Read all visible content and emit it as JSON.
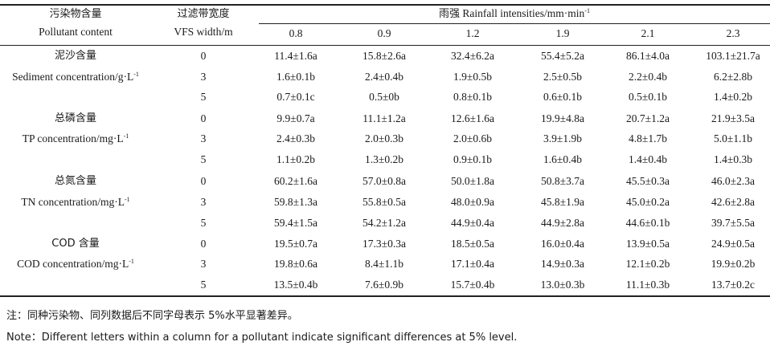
{
  "header": {
    "pollutant_zh": "污染物含量",
    "pollutant_en": "Pollutant content",
    "vfs_zh": "过滤带宽度",
    "vfs_en": "VFS width/m",
    "rain_zh": "雨强",
    "rain_en": "Rainfall intensities/mm·min",
    "rain_sup": "-1",
    "intensities": [
      "0.8",
      "0.9",
      "1.2",
      "1.9",
      "2.1",
      "2.3"
    ]
  },
  "groups": [
    {
      "label_zh": "泥沙含量",
      "label_en": "Sediment concentration/g·L",
      "label_sup": "-1",
      "rows": [
        {
          "width": "0",
          "values": [
            "11.4±1.6a",
            "15.8±2.6a",
            "32.4±6.2a",
            "55.4±5.2a",
            "86.1±4.0a",
            "103.1±21.7a"
          ]
        },
        {
          "width": "3",
          "values": [
            "1.6±0.1b",
            "2.4±0.4b",
            "1.9±0.5b",
            "2.5±0.5b",
            "2.2±0.4b",
            "6.2±2.8b"
          ]
        },
        {
          "width": "5",
          "values": [
            "0.7±0.1c",
            "0.5±0b",
            "0.8±0.1b",
            "0.6±0.1b",
            "0.5±0.1b",
            "1.4±0.2b"
          ]
        }
      ]
    },
    {
      "label_zh": "总磷含量",
      "label_en": "TP concentration/mg·L",
      "label_sup": "-1",
      "rows": [
        {
          "width": "0",
          "values": [
            "9.9±0.7a",
            "11.1±1.2a",
            "12.6±1.6a",
            "19.9±4.8a",
            "20.7±1.2a",
            "21.9±3.5a"
          ]
        },
        {
          "width": "3",
          "values": [
            "2.4±0.3b",
            "2.0±0.3b",
            "2.0±0.6b",
            "3.9±1.9b",
            "4.8±1.7b",
            "5.0±1.1b"
          ]
        },
        {
          "width": "5",
          "values": [
            "1.1±0.2b",
            "1.3±0.2b",
            "0.9±0.1b",
            "1.6±0.4b",
            "1.4±0.4b",
            "1.4±0.3b"
          ]
        }
      ]
    },
    {
      "label_zh": "总氮含量",
      "label_en": "TN concentration/mg·L",
      "label_sup": "-1",
      "rows": [
        {
          "width": "0",
          "values": [
            "60.2±1.6a",
            "57.0±0.8a",
            "50.0±1.8a",
            "50.8±3.7a",
            "45.5±0.3a",
            "46.0±2.3a"
          ]
        },
        {
          "width": "3",
          "values": [
            "59.8±1.3a",
            "55.8±0.5a",
            "48.0±0.9a",
            "45.8±1.9a",
            "45.0±0.2a",
            "42.6±2.8a"
          ]
        },
        {
          "width": "5",
          "values": [
            "59.4±1.5a",
            "54.2±1.2a",
            "44.9±0.4a",
            "44.9±2.8a",
            "44.6±0.1b",
            "39.7±5.5a"
          ]
        }
      ]
    },
    {
      "label_zh": "COD 含量",
      "label_en": "COD concentration/mg·L",
      "label_sup": "-1",
      "rows": [
        {
          "width": "0",
          "values": [
            "19.5±0.7a",
            "17.3±0.3a",
            "18.5±0.5a",
            "16.0±0.4a",
            "13.9±0.5a",
            "24.9±0.5a"
          ]
        },
        {
          "width": "3",
          "values": [
            "19.8±0.6a",
            "8.4±1.1b",
            "17.1±0.4a",
            "14.9±0.3a",
            "12.1±0.2b",
            "19.9±0.2b"
          ]
        },
        {
          "width": "5",
          "values": [
            "13.5±0.4b",
            "7.6±0.9b",
            "15.7±0.4b",
            "13.0±0.3b",
            "11.1±0.3b",
            "13.7±0.2c"
          ]
        }
      ]
    }
  ],
  "notes": {
    "zh": "注：同种污染物、同列数据后不同字母表示 5%水平显著差异。",
    "en": "Note：Different letters within a column for a pollutant indicate significant differences at 5% level."
  }
}
